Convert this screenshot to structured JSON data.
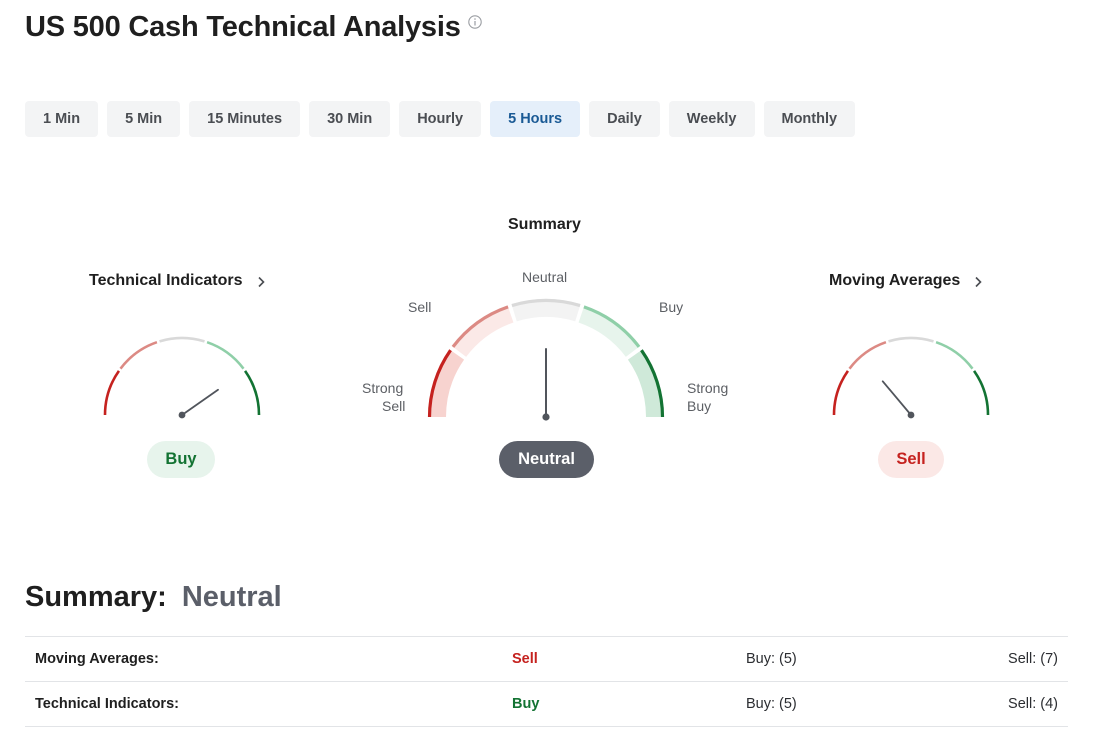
{
  "page": {
    "title": "US 500 Cash Technical Analysis"
  },
  "timeframes": {
    "active_index": 5,
    "items": [
      {
        "label": "1 Min"
      },
      {
        "label": "5 Min"
      },
      {
        "label": "15 Minutes"
      },
      {
        "label": "30 Min"
      },
      {
        "label": "Hourly"
      },
      {
        "label": "5 Hours"
      },
      {
        "label": "Daily"
      },
      {
        "label": "Weekly"
      },
      {
        "label": "Monthly"
      }
    ]
  },
  "gauges": {
    "technical_indicators": {
      "title": "Technical Indicators",
      "result": "Buy",
      "needle_angle_deg": 55
    },
    "summary": {
      "title": "Summary",
      "result": "Neutral",
      "needle_angle_deg": 0,
      "labels": {
        "strong_sell_1": "Strong",
        "strong_sell_2": "Sell",
        "sell": "Sell",
        "neutral": "Neutral",
        "buy": "Buy",
        "strong_buy_1": "Strong",
        "strong_buy_2": "Buy"
      }
    },
    "moving_averages": {
      "title": "Moving Averages",
      "result": "Sell",
      "needle_angle_deg": -40
    }
  },
  "overall": {
    "label": "Summary:",
    "value": "Neutral"
  },
  "summary_table": {
    "rows": [
      {
        "name": "Moving Averages:",
        "action": "Sell",
        "action_type": "sell",
        "buy": "Buy: (5)",
        "sell": "Sell: (7)"
      },
      {
        "name": "Technical Indicators:",
        "action": "Buy",
        "action_type": "buy",
        "buy": "Buy: (5)",
        "sell": "Sell: (4)"
      }
    ]
  },
  "colors": {
    "strong_sell": "#c5221f",
    "sell": "#dc8a84",
    "neutral": "#d9d9d9",
    "buy": "#8fcfa8",
    "strong_buy": "#137333",
    "active_tab_bg": "#e5effa",
    "active_tab_text": "#1a5a95",
    "neutral_pill": "#5b5f69"
  }
}
